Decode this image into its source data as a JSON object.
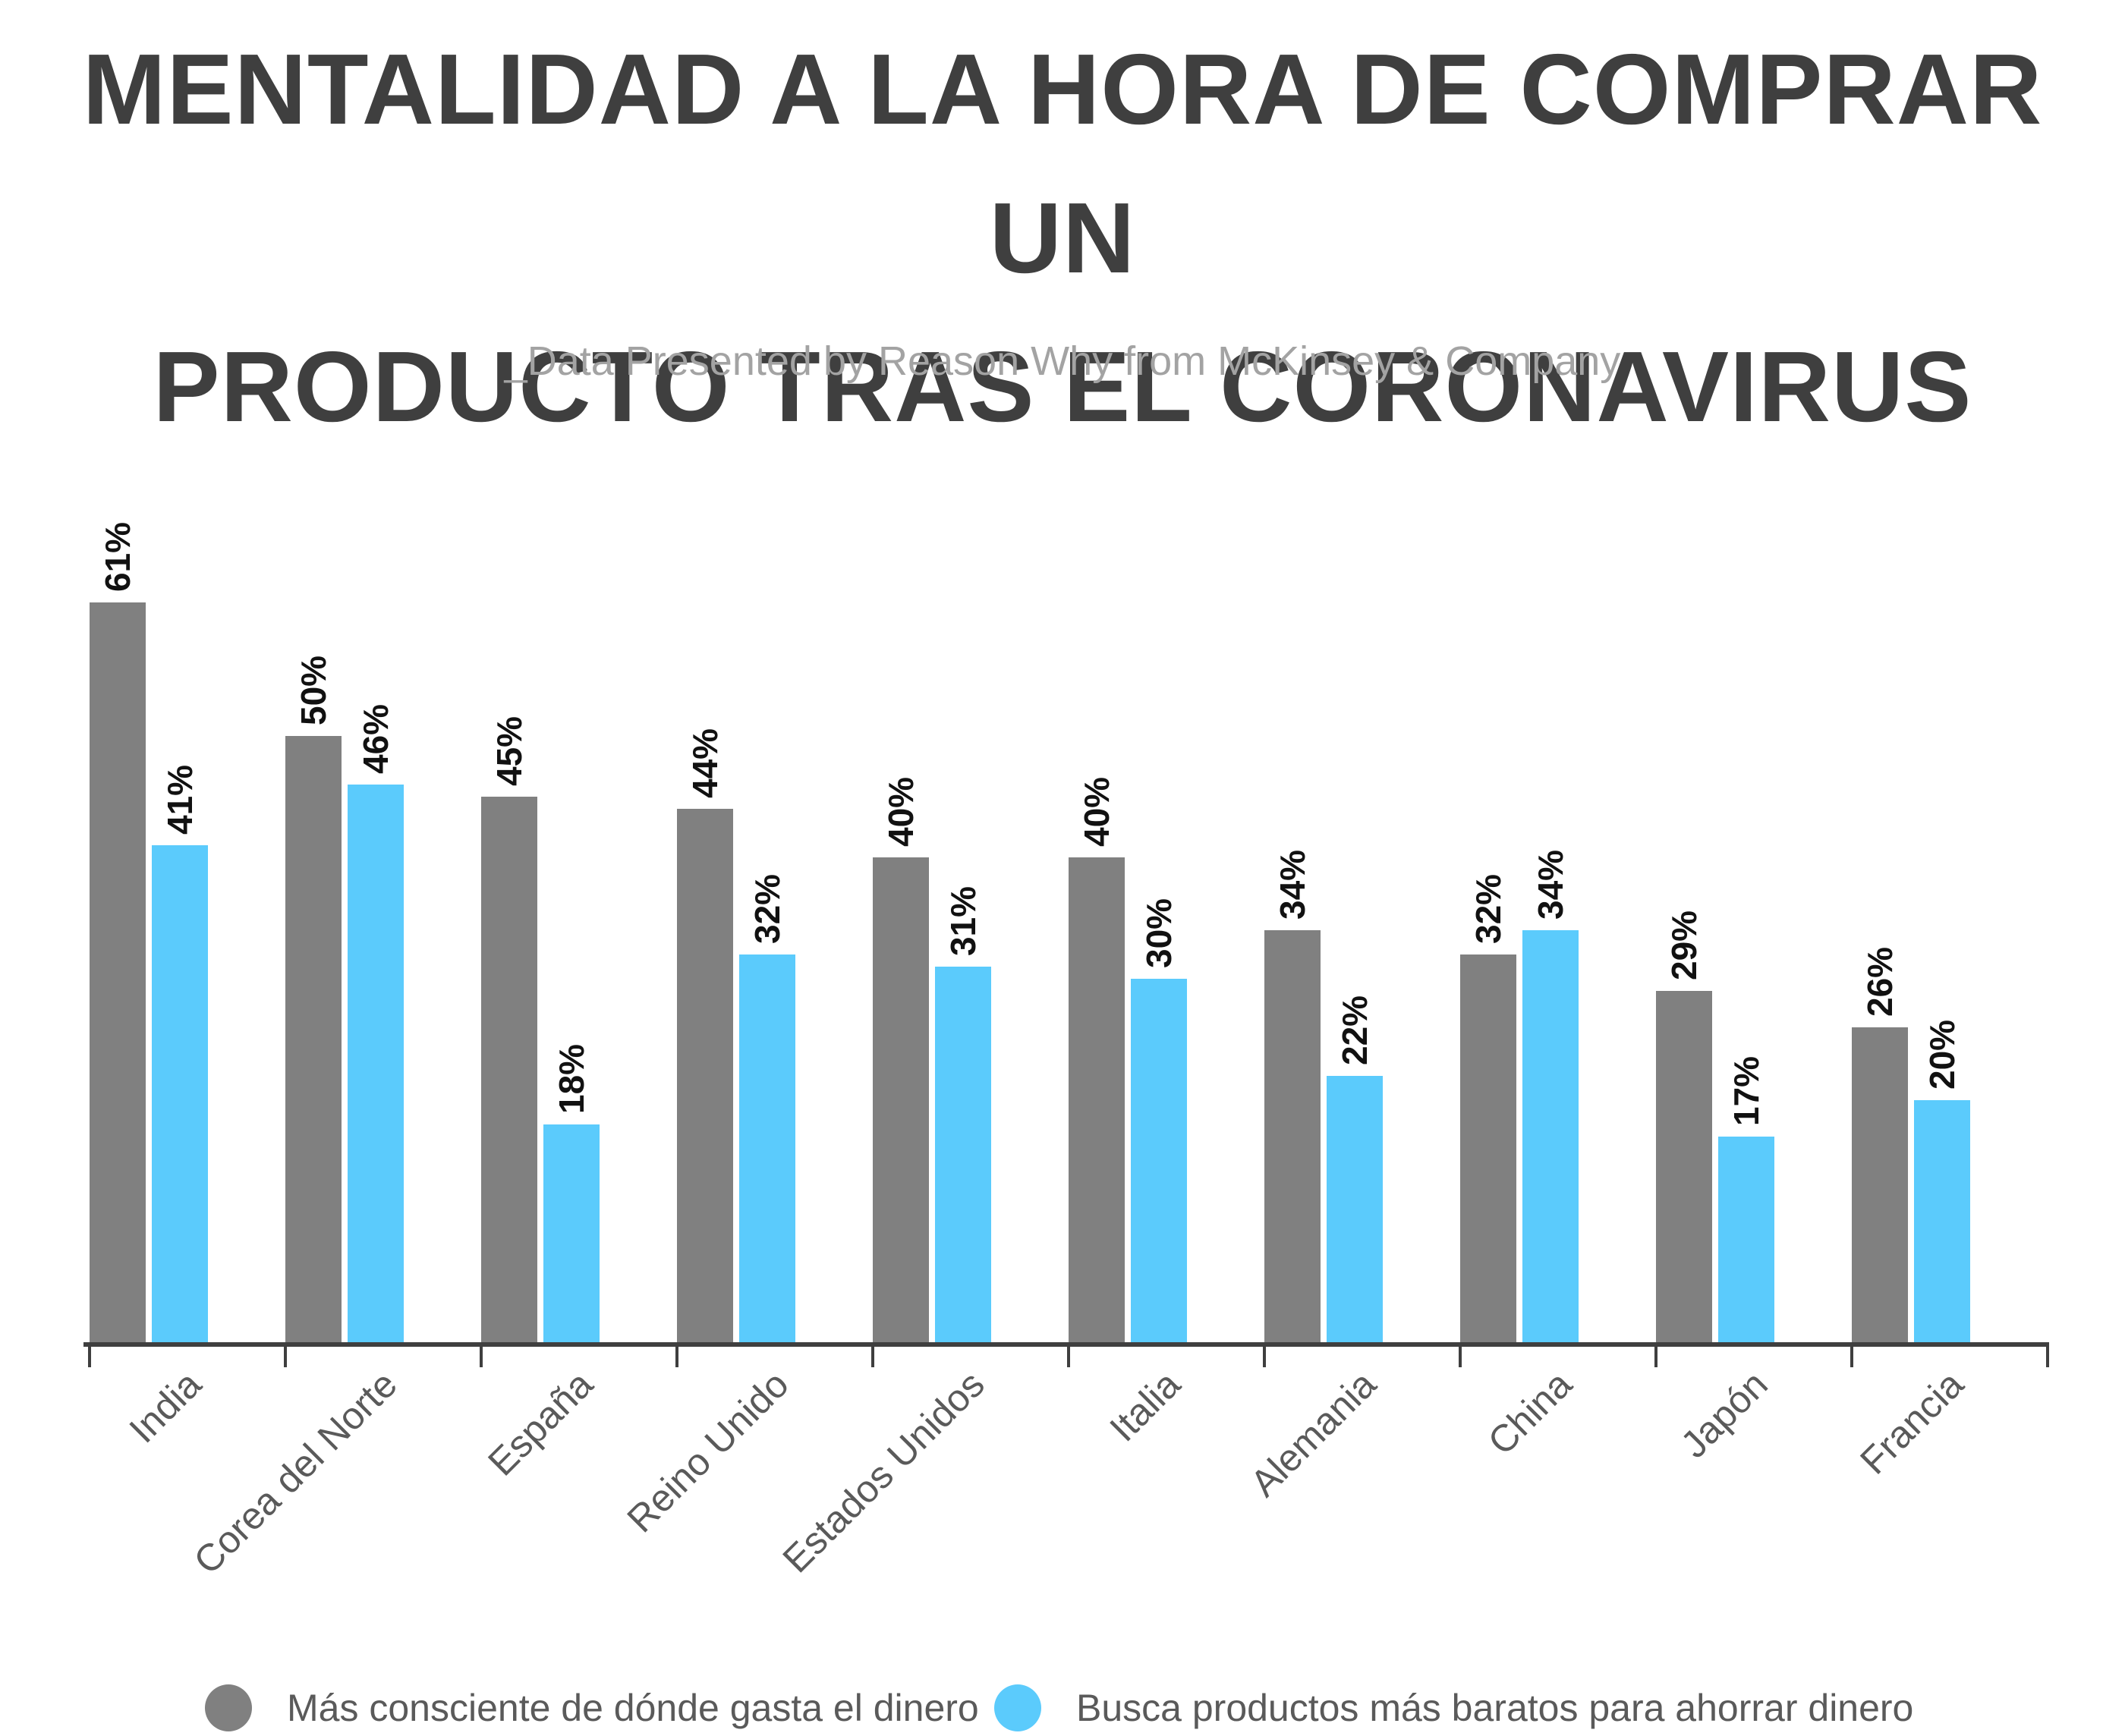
{
  "header": {
    "title_line1": "MENTALIDAD A LA HORA DE COMPRAR UN",
    "title_line2": "PRODUCTO TRAS EL CORONAVIRUS",
    "subtitle": "_Data Presented by Reason Why from McKinsey & Company"
  },
  "colors": {
    "series1": "#808080",
    "series2": "#5bcbfc",
    "axis": "#3f3f3f",
    "title": "#3f3f3f",
    "subtitle": "#a3a3a3"
  },
  "chart_data": {
    "type": "bar",
    "title": "MENTALIDAD A LA HORA DE COMPRAR UN PRODUCTO TRAS EL CORONAVIRUS",
    "subtitle": "_Data Presented by Reason Why from McKinsey & Company",
    "categories": [
      "India",
      "Corea del Norte",
      "España",
      "Reino Unido",
      "Estados Unidos",
      "Italia",
      "Alemania",
      "China",
      "Japón",
      "Francia"
    ],
    "series": [
      {
        "name": "Más consciente de dónde gasta el dinero",
        "values": [
          61,
          50,
          45,
          44,
          40,
          40,
          34,
          32,
          29,
          26
        ],
        "color": "#808080"
      },
      {
        "name": "Busca productos más baratos para ahorrar dinero",
        "values": [
          41,
          46,
          18,
          32,
          31,
          30,
          22,
          34,
          17,
          20
        ],
        "color": "#5bcbfc"
      }
    ],
    "value_suffix": "%",
    "ylim": [
      0,
      70
    ],
    "grid": false,
    "legend_position": "bottom",
    "xlabel": "",
    "ylabel": ""
  },
  "legend": {
    "items": [
      {
        "label": "Más consciente de dónde gasta el dinero",
        "color": "#808080"
      },
      {
        "label": "Busca productos más baratos para ahorrar dinero",
        "color": "#5bcbfc"
      }
    ]
  }
}
